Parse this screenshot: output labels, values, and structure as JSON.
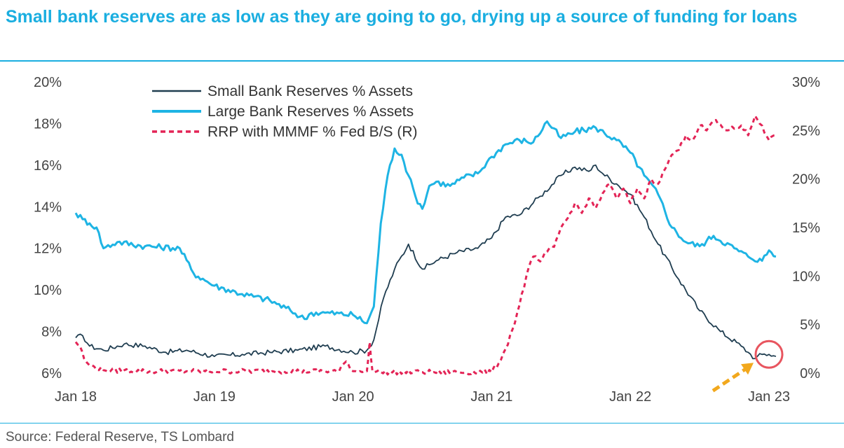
{
  "header": {
    "title": "Small bank reserves are as low as they are going to go, drying up a source of funding for loans"
  },
  "footer": {
    "source": "Source: Federal Reserve, TS Lombard"
  },
  "chart_data": {
    "type": "line",
    "title": "Small bank reserves are as low as they are going to go, drying up a source of funding for loans",
    "x_tick_labels": [
      "Jan 18",
      "Jan 19",
      "Jan 20",
      "Jan 21",
      "Jan 22",
      "Jan 23"
    ],
    "x_ticks": [
      2018,
      2019,
      2020,
      2021,
      2022,
      2023
    ],
    "xlim": [
      2018.0,
      2023.0
    ],
    "y_left": {
      "lim": [
        6,
        20
      ],
      "ticks": [
        6,
        8,
        10,
        12,
        14,
        16,
        18,
        20
      ],
      "tick_labels": [
        "6%",
        "8%",
        "10%",
        "12%",
        "14%",
        "16%",
        "18%",
        "20%"
      ]
    },
    "y_right": {
      "lim": [
        0,
        30
      ],
      "ticks": [
        0,
        5,
        10,
        15,
        20,
        25,
        30
      ],
      "tick_labels": [
        "0%",
        "5%",
        "10%",
        "15%",
        "20%",
        "25%",
        "30%"
      ]
    },
    "grid": false,
    "legend_position": "top-left",
    "series": [
      {
        "name": "Small Bank Reserves % Assets",
        "axis": "left",
        "color": "#1f3d50",
        "style": "solid",
        "x": [
          2018.0,
          2018.05,
          2018.1,
          2018.2,
          2018.35,
          2018.5,
          2018.65,
          2018.8,
          2019.0,
          2019.2,
          2019.4,
          2019.6,
          2019.8,
          2020.0,
          2020.1,
          2020.15,
          2020.22,
          2020.3,
          2020.4,
          2020.5,
          2020.6,
          2020.75,
          2020.9,
          2021.0,
          2021.1,
          2021.2,
          2021.35,
          2021.5,
          2021.6,
          2021.7,
          2021.75,
          2021.8,
          2021.9,
          2022.0,
          2022.1,
          2022.2,
          2022.35,
          2022.5,
          2022.65,
          2022.8,
          2022.85,
          2022.9,
          2022.95,
          2023.0,
          2023.05
        ],
        "values": [
          7.7,
          7.8,
          7.3,
          7.1,
          7.4,
          7.3,
          7.0,
          7.1,
          6.8,
          6.9,
          7.0,
          7.1,
          7.3,
          7.0,
          7.1,
          7.6,
          9.6,
          11.0,
          12.2,
          11.0,
          11.4,
          11.8,
          12.0,
          12.5,
          13.5,
          13.6,
          14.5,
          15.5,
          15.9,
          15.7,
          16.0,
          15.6,
          15.1,
          14.6,
          13.5,
          12.2,
          10.5,
          9.0,
          8.0,
          7.3,
          7.0,
          6.7,
          6.9,
          6.9,
          6.8
        ]
      },
      {
        "name": "Large Bank Reserves % Assets",
        "axis": "left",
        "color": "#1eb4e4",
        "style": "solid",
        "x": [
          2018.0,
          2018.05,
          2018.1,
          2018.15,
          2018.2,
          2018.3,
          2018.5,
          2018.75,
          2018.85,
          2019.0,
          2019.2,
          2019.4,
          2019.55,
          2019.65,
          2019.7,
          2019.8,
          2020.0,
          2020.1,
          2020.15,
          2020.2,
          2020.25,
          2020.3,
          2020.35,
          2020.4,
          2020.45,
          2020.5,
          2020.55,
          2020.6,
          2020.7,
          2020.8,
          2020.9,
          2021.0,
          2021.1,
          2021.2,
          2021.3,
          2021.4,
          2021.5,
          2021.6,
          2021.75,
          2021.9,
          2022.0,
          2022.1,
          2022.2,
          2022.3,
          2022.4,
          2022.5,
          2022.6,
          2022.75,
          2022.85,
          2022.95,
          2023.0,
          2023.05
        ],
        "values": [
          13.7,
          13.4,
          13.2,
          13.0,
          12.0,
          12.3,
          12.1,
          12.0,
          10.8,
          10.2,
          9.8,
          9.5,
          9.0,
          8.6,
          8.9,
          8.9,
          8.8,
          8.4,
          9.2,
          13.2,
          15.5,
          16.8,
          16.5,
          15.5,
          14.5,
          13.9,
          15.0,
          15.2,
          15.0,
          15.4,
          15.6,
          16.4,
          17.0,
          17.2,
          17.1,
          18.1,
          17.3,
          17.6,
          17.8,
          17.2,
          16.6,
          15.5,
          14.6,
          13.0,
          12.3,
          12.1,
          12.6,
          12.0,
          11.6,
          11.4,
          11.9,
          11.6
        ]
      },
      {
        "name": "RRP with MMMF % Fed B/S (R)",
        "axis": "right",
        "color": "#e32456",
        "style": "dashed",
        "x": [
          2018.0,
          2018.03,
          2018.06,
          2018.1,
          2018.2,
          2018.5,
          2019.0,
          2019.5,
          2019.9,
          2019.95,
          2020.0,
          2020.05,
          2020.1,
          2020.12,
          2020.14,
          2020.2,
          2020.5,
          2021.0,
          2021.05,
          2021.1,
          2021.15,
          2021.2,
          2021.25,
          2021.3,
          2021.35,
          2021.4,
          2021.45,
          2021.5,
          2021.55,
          2021.6,
          2021.65,
          2021.7,
          2021.75,
          2021.8,
          2021.85,
          2021.9,
          2021.95,
          2022.0,
          2022.05,
          2022.1,
          2022.15,
          2022.2,
          2022.25,
          2022.3,
          2022.35,
          2022.4,
          2022.45,
          2022.5,
          2022.55,
          2022.6,
          2022.7,
          2022.8,
          2022.85,
          2022.9,
          2022.95,
          2023.0,
          2023.05
        ],
        "values": [
          3.2,
          2.8,
          1.5,
          0.8,
          0.3,
          0.2,
          0.2,
          0.2,
          0.2,
          1.2,
          0.2,
          0.2,
          0.2,
          3.2,
          0.2,
          0.1,
          0.1,
          0.1,
          1.0,
          2.5,
          4.5,
          7.0,
          10.0,
          12.0,
          11.5,
          12.5,
          13.0,
          15.0,
          16.0,
          17.5,
          16.5,
          18.0,
          17.0,
          18.5,
          19.5,
          18.0,
          19.0,
          17.5,
          19.0,
          18.0,
          20.0,
          19.5,
          21.0,
          22.5,
          23.0,
          24.5,
          24.0,
          25.5,
          25.0,
          26.0,
          25.0,
          25.5,
          24.5,
          26.5,
          25.5,
          24.0,
          24.5
        ]
      }
    ],
    "annotation": {
      "x": 2023.0,
      "y_left": 6.9
    }
  }
}
